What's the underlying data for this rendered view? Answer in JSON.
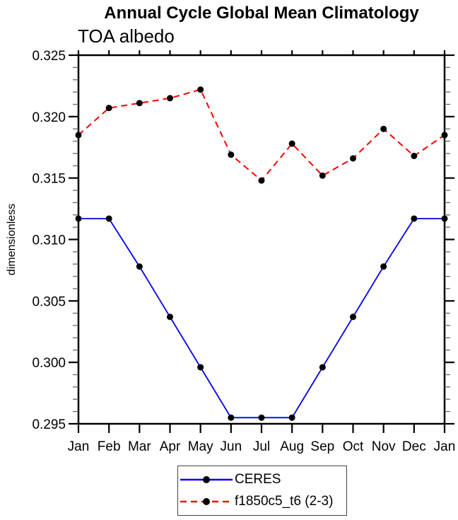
{
  "title": "Annual Cycle Global Mean Climatology",
  "subtitle": "TOA albedo",
  "chart_data": {
    "type": "line",
    "x_categories": [
      "Jan",
      "Feb",
      "Mar",
      "Apr",
      "May",
      "Jun",
      "Jul",
      "Aug",
      "Sep",
      "Oct",
      "Nov",
      "Dec",
      "Jan"
    ],
    "xlabel": "",
    "ylabel": "dimensionless",
    "ylim": [
      0.295,
      0.325
    ],
    "ytick_step": 0.005,
    "yminor_step": 0.001,
    "ytick_labels": [
      "0.295",
      "0.300",
      "0.305",
      "0.310",
      "0.315",
      "0.320",
      "0.325"
    ],
    "grid": false,
    "legend_position": "bottom-center",
    "series": [
      {
        "name": "CERES",
        "color": "#0000ee",
        "line_style": "solid",
        "marker": "filled-circle",
        "marker_color": "#000000",
        "values": [
          0.3117,
          0.3117,
          0.3078,
          0.3037,
          0.2996,
          0.2955,
          0.2955,
          0.2955,
          0.2996,
          0.3037,
          0.3078,
          0.3117,
          0.3117
        ]
      },
      {
        "name": "f1850c5_t6 (2-3)",
        "color": "#ff0000",
        "line_style": "dashed",
        "marker": "filled-circle",
        "marker_color": "#000000",
        "values": [
          0.3185,
          0.3207,
          0.3211,
          0.3215,
          0.3222,
          0.3169,
          0.3148,
          0.3178,
          0.3152,
          0.3166,
          0.319,
          0.3168,
          0.3185
        ]
      }
    ]
  },
  "colors": {
    "background": "#ffffff",
    "axis": "#000000",
    "minor_tick": "#666666",
    "text": "#000000",
    "legend_border": "#444444"
  }
}
